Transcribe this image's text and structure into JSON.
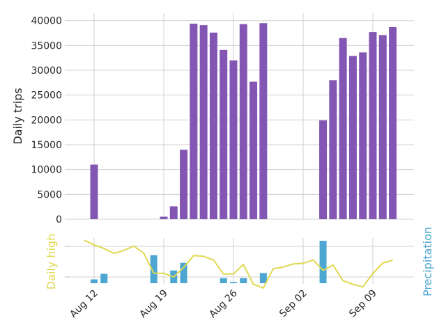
{
  "chart_data": {
    "type": "bar+line",
    "colors": {
      "trips": "#8456b3",
      "temperature": "#e0d84e",
      "precipitation": "#4ca6d1",
      "grid": "#d0d0d0"
    },
    "top": {
      "ylabel": "Daily trips",
      "ylim": [
        0,
        41500
      ],
      "yticks": [
        0,
        5000,
        10000,
        15000,
        20000,
        25000,
        30000,
        35000,
        40000
      ],
      "bars": [
        {
          "date": "Aug 12",
          "value": 11000
        },
        {
          "date": "Aug 19",
          "value": 500
        },
        {
          "date": "Aug 20",
          "value": 2600
        },
        {
          "date": "Aug 21",
          "value": 14000
        },
        {
          "date": "Aug 22",
          "value": 39400
        },
        {
          "date": "Aug 23",
          "value": 39100
        },
        {
          "date": "Aug 24",
          "value": 37600
        },
        {
          "date": "Aug 25",
          "value": 34100
        },
        {
          "date": "Aug 26",
          "value": 32000
        },
        {
          "date": "Aug 27",
          "value": 39300
        },
        {
          "date": "Aug 28",
          "value": 27700
        },
        {
          "date": "Aug 29",
          "value": 39500
        },
        {
          "date": "Sep 04",
          "value": 19900
        },
        {
          "date": "Sep 05",
          "value": 28000
        },
        {
          "date": "Sep 06",
          "value": 36500
        },
        {
          "date": "Sep 07",
          "value": 32900
        },
        {
          "date": "Sep 08",
          "value": 33600
        },
        {
          "date": "Sep 09",
          "value": 37700
        },
        {
          "date": "Sep 10",
          "value": 37100
        },
        {
          "date": "Sep 11",
          "value": 38700
        }
      ]
    },
    "bottom": {
      "ylabel_left": "Daily high",
      "ylabel_right": "Precipitation",
      "xticks": [
        "Aug 12",
        "Aug 19",
        "Aug 26",
        "Sep 02",
        "Sep 09"
      ],
      "xtick_dates": [
        "Aug 12",
        "Aug 19",
        "Aug 26",
        "Sep 02",
        "Sep 09"
      ],
      "temperature_relative": [
        {
          "date": "Aug 11",
          "value": 1.0
        },
        {
          "date": "Aug 12",
          "value": 0.87
        },
        {
          "date": "Aug 13",
          "value": 0.77
        },
        {
          "date": "Aug 14",
          "value": 0.64
        },
        {
          "date": "Aug 15",
          "value": 0.72
        },
        {
          "date": "Aug 16",
          "value": 0.84
        },
        {
          "date": "Aug 17",
          "value": 0.64
        },
        {
          "date": "Aug 18",
          "value": 0.1
        },
        {
          "date": "Aug 19",
          "value": 0.1
        },
        {
          "date": "Aug 20",
          "value": 0.0
        },
        {
          "date": "Aug 21",
          "value": 0.26
        },
        {
          "date": "Aug 22",
          "value": 0.58
        },
        {
          "date": "Aug 23",
          "value": 0.56
        },
        {
          "date": "Aug 24",
          "value": 0.46
        },
        {
          "date": "Aug 25",
          "value": 0.08
        },
        {
          "date": "Aug 26",
          "value": 0.08
        },
        {
          "date": "Aug 27",
          "value": 0.34
        },
        {
          "date": "Aug 28",
          "value": -0.2
        },
        {
          "date": "Aug 29",
          "value": -0.3
        },
        {
          "date": "Aug 30",
          "value": 0.22
        },
        {
          "date": "Aug 31",
          "value": 0.27
        },
        {
          "date": "Sep 01",
          "value": 0.35
        },
        {
          "date": "Sep 02",
          "value": 0.37
        },
        {
          "date": "Sep 03",
          "value": 0.46
        },
        {
          "date": "Sep 04",
          "value": 0.18
        },
        {
          "date": "Sep 05",
          "value": 0.32
        },
        {
          "date": "Sep 06",
          "value": -0.1
        },
        {
          "date": "Sep 07",
          "value": -0.2
        },
        {
          "date": "Sep 08",
          "value": -0.27
        },
        {
          "date": "Sep 09",
          "value": 0.09
        },
        {
          "date": "Sep 10",
          "value": 0.38
        },
        {
          "date": "Sep 11",
          "value": 0.45
        }
      ],
      "precipitation_relative": [
        {
          "date": "Aug 12",
          "value": 0.09
        },
        {
          "date": "Aug 13",
          "value": 0.22
        },
        {
          "date": "Aug 18",
          "value": 0.66
        },
        {
          "date": "Aug 20",
          "value": 0.3
        },
        {
          "date": "Aug 21",
          "value": 0.48
        },
        {
          "date": "Aug 25",
          "value": 0.12
        },
        {
          "date": "Aug 26",
          "value": 0.03
        },
        {
          "date": "Aug 27",
          "value": 0.12
        },
        {
          "date": "Aug 29",
          "value": 0.24
        },
        {
          "date": "Sep 04",
          "value": 1.0
        }
      ]
    }
  }
}
